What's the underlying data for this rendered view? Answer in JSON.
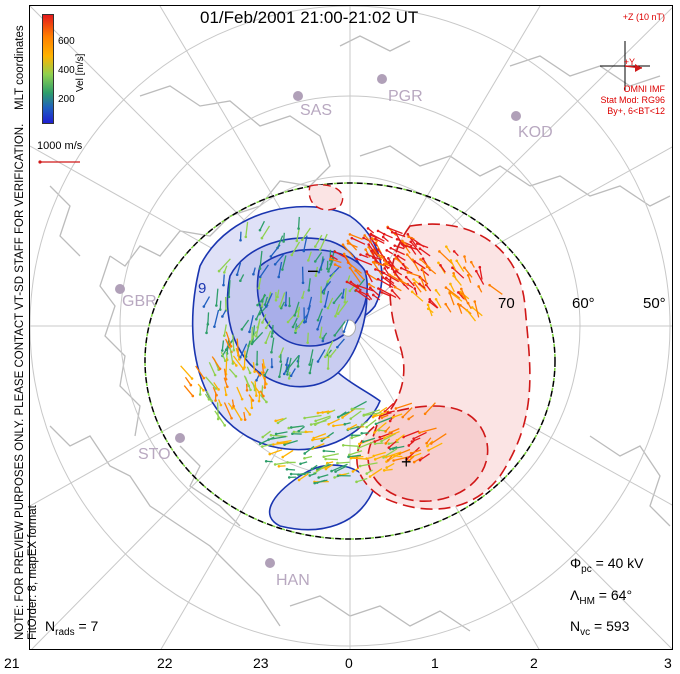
{
  "title": "01/Feb/2001 21:00-21:02 UT",
  "side_note_line1": "NOTE: FOR PREVIEW PURPOSES ONLY. PLEASE CONTACT VT-SD STAFF FOR VERIFICATION.",
  "side_note_line2": "FitOrder: 8, mapEX format",
  "coordinates_label": "MLT coordinates",
  "colorbar": {
    "label": "Vel [m/s]",
    "ticks": [
      "600",
      "400",
      "200"
    ],
    "colors": [
      "#e31a1c",
      "#ff7f00",
      "#ffb300",
      "#8fd14f",
      "#2e9e6a",
      "#1f5fbf",
      "#1f1fd1"
    ]
  },
  "scale_vector": "1000 m/s",
  "imf": {
    "z_label": "+Z (10 nT)",
    "y_label": "+Y",
    "model_line1": "OMNI IMF",
    "model_line2": "Stat Mod: RG96",
    "model_line3": "By+, 6<BT<12"
  },
  "stats": {
    "nrads": "N",
    "nrads_sub": "rads",
    "nrads_val": " = 7",
    "phi": "Φ",
    "phi_sub": "pc",
    "phi_val": " = 40 kV",
    "lambda": "Λ",
    "lambda_sub": "HM",
    "lambda_val": " = 64°",
    "nvc": "N",
    "nvc_sub": "vc",
    "nvc_val": " = 593"
  },
  "stations": [
    "SAS",
    "PGR",
    "KOD",
    "GBR",
    "STO",
    "HAN"
  ],
  "mlat_labels": [
    "70",
    "60°",
    "50°"
  ],
  "mlt_ticks": [
    "21",
    "22",
    "23",
    "0",
    "1",
    "2",
    "3"
  ],
  "cell_signs": [
    "−",
    "+"
  ],
  "contour_label": "9",
  "colors": {
    "negative_cell": "#1a35b0",
    "positive_cell": "#d01818",
    "neg_fill": "#c8ccf0",
    "pos_fill": "#f7cfcf",
    "grid": "#c8c8c8",
    "coast": "#bcbcbc"
  }
}
